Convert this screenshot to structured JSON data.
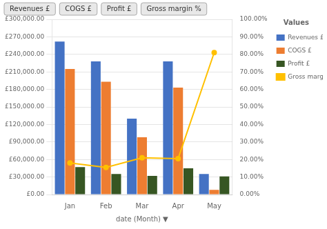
{
  "chart_data": {
    "type": "bar",
    "categories": [
      "Jan",
      "Feb",
      "Mar",
      "Apr",
      "May"
    ],
    "series": [
      {
        "name": "Revenues £",
        "color": "#4472C4",
        "values": [
          262000,
          228000,
          130000,
          228000,
          35000
        ]
      },
      {
        "name": "COGS £",
        "color": "#ED7D31",
        "values": [
          215000,
          193000,
          98000,
          183000,
          8000
        ]
      },
      {
        "name": "Profit £",
        "color": "#375623",
        "values": [
          47000,
          35000,
          32000,
          45000,
          31000
        ]
      },
      {
        "name": "Gross margin %",
        "type": "line",
        "axis": "y2",
        "color": "#FFC000",
        "marker": "circle",
        "values": [
          0.18,
          0.155,
          0.21,
          0.205,
          0.81
        ]
      }
    ],
    "x_label": "date (Month) ▼",
    "ylim": [
      0,
      300000
    ],
    "yticks": [
      {
        "value": 0,
        "label": "£0.00"
      },
      {
        "value": 30000,
        "label": "£30,000.00"
      },
      {
        "value": 60000,
        "label": "£60,000.00"
      },
      {
        "value": 90000,
        "label": "£90,000.00"
      },
      {
        "value": 120000,
        "label": "£120,000.00"
      },
      {
        "value": 150000,
        "label": "£150,000.00"
      },
      {
        "value": 180000,
        "label": "£180,000.00"
      },
      {
        "value": 210000,
        "label": "£210,000.00"
      },
      {
        "value": 240000,
        "label": "£240,000.00"
      },
      {
        "value": 270000,
        "label": "£270,000.00"
      },
      {
        "value": 300000,
        "label": "£300,000.00"
      }
    ],
    "y2lim": [
      0,
      1.0
    ],
    "y2ticks": [
      {
        "value": 0,
        "label": "0.00%"
      },
      {
        "value": 0.1,
        "label": "10.00%"
      },
      {
        "value": 0.2,
        "label": "20.00%"
      },
      {
        "value": 0.3,
        "label": "30.00%"
      },
      {
        "value": 0.4,
        "label": "40.00%"
      },
      {
        "value": 0.5,
        "label": "50.00%"
      },
      {
        "value": 0.6,
        "label": "60.00%"
      },
      {
        "value": 0.7,
        "label": "70.00%"
      },
      {
        "value": 0.8,
        "label": "80.00%"
      },
      {
        "value": 0.9,
        "label": "90.00%"
      },
      {
        "value": 1.0,
        "label": "100.00%"
      }
    ],
    "grid": true,
    "legend": "right",
    "legend_title": "Values",
    "annotations": [
      "Revenues £",
      "COGS £",
      "Profit £",
      "Gross margin %"
    ]
  }
}
